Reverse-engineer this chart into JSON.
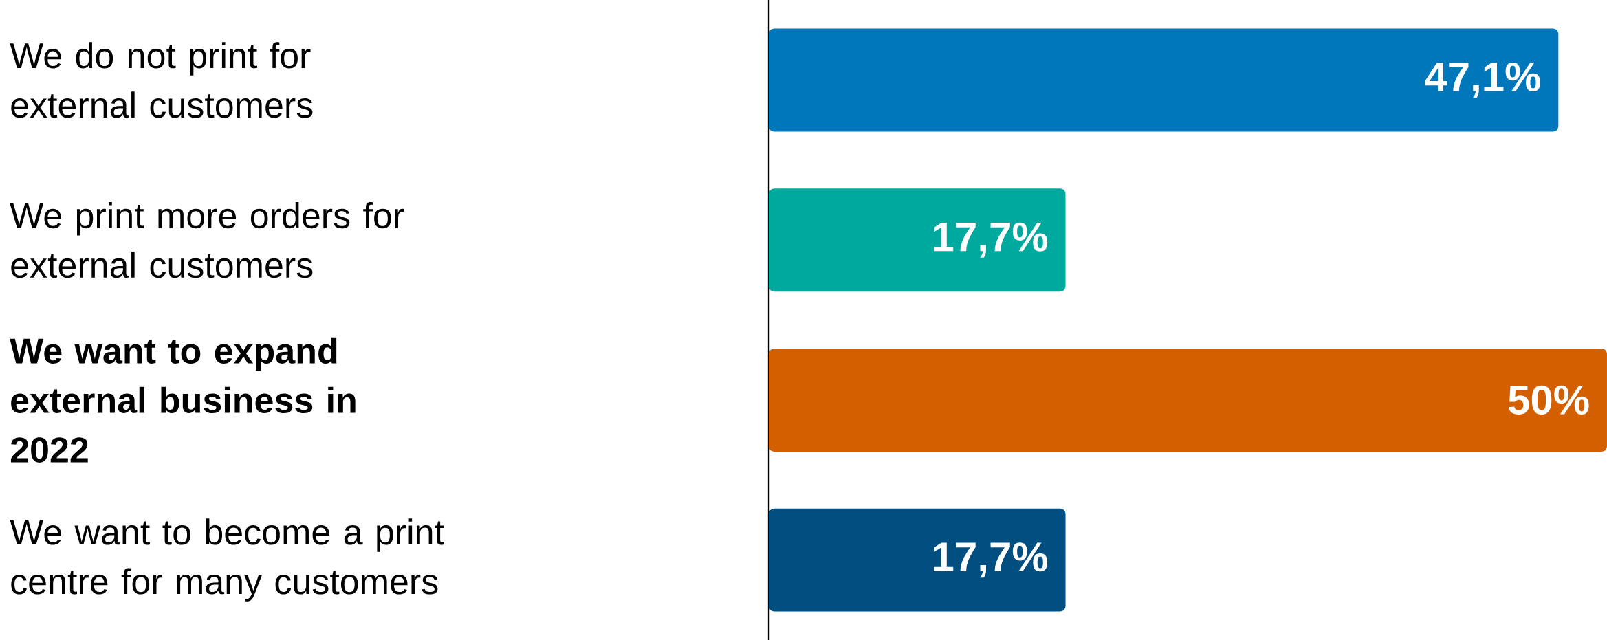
{
  "chart_data": {
    "type": "bar",
    "orientation": "horizontal",
    "categories": [
      "We do not print for external customers",
      "We print more orders for external customers",
      "**We want to expand external business in 2022**",
      "We want to become a print centre for many customers"
    ],
    "values": [
      47.1,
      17.7,
      50,
      17.7
    ],
    "colors": [
      "#0077bb",
      "#00a99d",
      "#d45f00",
      "#004f80"
    ],
    "value_labels": [
      "47,1%",
      "17,7%",
      "50%",
      "17,7%"
    ],
    "xlim": [
      0,
      50
    ],
    "tick_labels": "y"
  }
}
